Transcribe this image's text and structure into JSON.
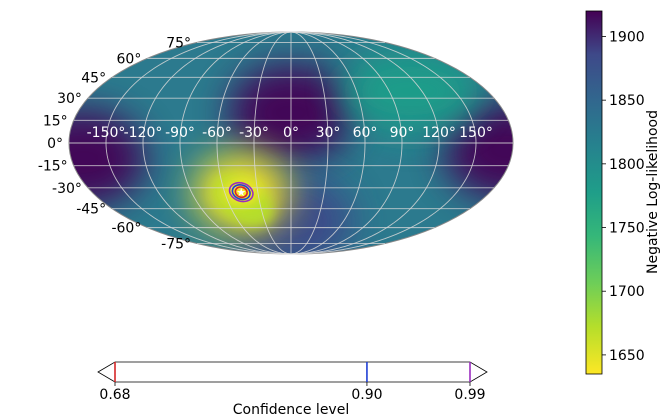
{
  "chart_data": [
    {
      "type": "heatmap",
      "projection": "mollweide",
      "title": "",
      "longitude_ticks": [
        "-150°",
        "-120°",
        "-90°",
        "-60°",
        "-30°",
        "0°",
        "30°",
        "60°",
        "90°",
        "120°",
        "150°"
      ],
      "latitude_ticks": [
        "75°",
        "60°",
        "45°",
        "30°",
        "15°",
        "0°",
        "-15°",
        "-30°",
        "-45°",
        "-60°",
        "-75°"
      ],
      "grid": true,
      "colormap": "viridis_r",
      "features": [
        {
          "kind": "maximum",
          "lon": 0,
          "lat": 20,
          "value": 1915
        },
        {
          "kind": "maximum",
          "lon": 175,
          "lat": -5,
          "value": 1905
        },
        {
          "kind": "maximum",
          "lon": -170,
          "lat": -10,
          "value": 1905
        },
        {
          "kind": "maximum",
          "lon": 0,
          "lat": -55,
          "value": 1900
        },
        {
          "kind": "secondary-minimum",
          "lon": 110,
          "lat": 35,
          "value": 1760
        },
        {
          "kind": "global-minimum",
          "lon": -45,
          "lat": -33,
          "value": 1640
        }
      ],
      "best_fit": {
        "lon": -45,
        "lat": -33
      },
      "confidence_contours": [
        {
          "level": 0.68,
          "color": "#d62728"
        },
        {
          "level": 0.9,
          "color": "#1f3fd4"
        },
        {
          "level": 0.99,
          "color": "#9b2dbf"
        }
      ]
    },
    {
      "type": "colorbar",
      "label": "Negative Log-likelihood",
      "range": [
        1635,
        1920
      ],
      "ticks": [
        1650,
        1700,
        1750,
        1800,
        1850,
        1900
      ],
      "tick_labels": [
        "1650",
        "1700",
        "1750",
        "1800",
        "1850",
        "1900"
      ],
      "colormap": "viridis_r"
    },
    {
      "type": "colorbar",
      "label": "Confidence level",
      "ticks": [
        0.68,
        0.9,
        0.99
      ],
      "tick_labels": [
        "0.68",
        "0.90",
        "0.99"
      ],
      "line_colors": [
        "#d62728",
        "#1f3fd4",
        "#9b2dbf"
      ]
    }
  ]
}
